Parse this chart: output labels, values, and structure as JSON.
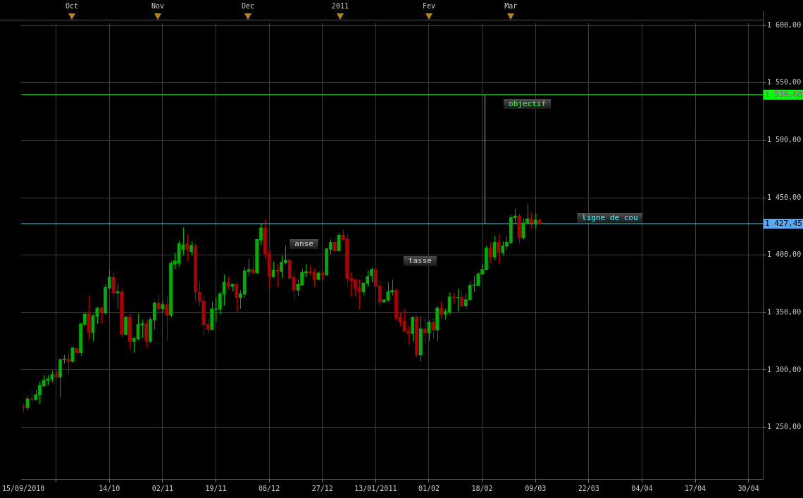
{
  "chart_data": {
    "type": "candlestick",
    "categories": [
      "15/09/2010",
      null,
      null,
      null,
      null,
      null,
      null,
      null,
      null,
      null,
      null,
      null,
      null,
      null,
      null,
      null,
      null,
      null,
      null,
      null,
      null,
      "14/10",
      null,
      null,
      null,
      null,
      null,
      null,
      null,
      null,
      null,
      null,
      null,
      null,
      "02/11",
      null,
      null,
      null,
      null,
      null,
      null,
      null,
      null,
      null,
      null,
      null,
      null,
      "19/11",
      null,
      null,
      null,
      null,
      null,
      null,
      null,
      null,
      null,
      null,
      null,
      null,
      "08/12",
      null,
      null,
      null,
      null,
      null,
      null,
      null,
      null,
      null,
      null,
      null,
      null,
      "27/12",
      null,
      null,
      null,
      null,
      null,
      null,
      null,
      null,
      null,
      null,
      null,
      null,
      "13/01/2011",
      null,
      null,
      null,
      null,
      null,
      null,
      null,
      null,
      null,
      null,
      null,
      null,
      "01/02",
      null,
      null,
      null,
      null,
      null,
      null,
      null,
      null,
      null,
      null,
      null,
      null,
      "18/02",
      null,
      null,
      null,
      null,
      null,
      null,
      null,
      null,
      null,
      null,
      null,
      null,
      "09/03",
      null,
      null,
      null,
      null,
      null,
      null,
      null,
      null,
      null,
      null,
      null,
      null,
      "22/03",
      null,
      null,
      null,
      null,
      null,
      null,
      null,
      null,
      null,
      null,
      null,
      null,
      "04/04",
      null,
      null,
      null,
      null,
      null,
      null,
      null,
      null,
      null,
      null,
      null,
      null,
      "17/04",
      null,
      null,
      null,
      null,
      null,
      null,
      null,
      null,
      null,
      null,
      null,
      null,
      "30/04",
      null,
      null,
      null
    ],
    "ohlc": [
      [
        1268,
        1271.1,
        1263.2,
        1267.5
      ],
      [
        1267.3,
        1277.3,
        1264.8,
        1274.8
      ],
      [
        1275,
        1282.3,
        1271.9,
        1274.5
      ],
      [
        1274,
        1282.9,
        1273.6,
        1278.6
      ],
      [
        1278.1,
        1289.8,
        1270.5,
        1286.6
      ],
      [
        1286,
        1295.4,
        1285.6,
        1291
      ],
      [
        1290.6,
        1295.4,
        1286.9,
        1292.2
      ],
      [
        1291.8,
        1299.1,
        1289.3,
        1296
      ],
      [
        1296,
        1299,
        1293.7,
        1293.7
      ],
      [
        1293.7,
        1309.7,
        1276.3,
        1309.1
      ],
      [
        1308.6,
        1313,
        1305.5,
        1309.5
      ],
      [
        1309.7,
        1315.3,
        1296.2,
        1307.4
      ],
      [
        1307.4,
        1319.9,
        1306.2,
        1319.2
      ],
      [
        1318.8,
        1318.8,
        1312.4,
        1314.9
      ],
      [
        1314.9,
        1340.8,
        1312.4,
        1340.2
      ],
      [
        1339.8,
        1348.9,
        1338.5,
        1348.9
      ],
      [
        1348.9,
        1364.5,
        1326.1,
        1332.7
      ],
      [
        1332.7,
        1348.9,
        1324.8,
        1347.1
      ],
      [
        1346.4,
        1355.2,
        1340.2,
        1353.9
      ],
      [
        1353.9,
        1355.2,
        1340.2,
        1350
      ],
      [
        1349.6,
        1374.5,
        1348.3,
        1372
      ],
      [
        1371.3,
        1386.9,
        1370.3,
        1380.7
      ],
      [
        1380.7,
        1385,
        1362.2,
        1367
      ],
      [
        1367,
        1375.1,
        1352.7,
        1368.2
      ],
      [
        1368.2,
        1370.7,
        1328,
        1330.9
      ],
      [
        1330.9,
        1347.1,
        1330.2,
        1345.8
      ],
      [
        1345.8,
        1348.9,
        1318,
        1324.8
      ],
      [
        1324.8,
        1327.8,
        1314.9,
        1327.8
      ],
      [
        1327.1,
        1348.9,
        1325.9,
        1339.6
      ],
      [
        1339,
        1343.3,
        1327.8,
        1340.2
      ],
      [
        1340.2,
        1343.3,
        1319.2,
        1324.8
      ],
      [
        1324.8,
        1345.8,
        1323,
        1343.9
      ],
      [
        1343.3,
        1359.5,
        1335.2,
        1358.3
      ],
      [
        1358.3,
        1365.7,
        1348.9,
        1353.3
      ],
      [
        1353.3,
        1360.1,
        1350.2,
        1357
      ],
      [
        1357,
        1364.5,
        1325.3,
        1347.7
      ],
      [
        1347.7,
        1395,
        1346,
        1393
      ],
      [
        1392,
        1402,
        1388,
        1395
      ],
      [
        1393,
        1412,
        1390,
        1410
      ],
      [
        1405,
        1424,
        1400,
        1409
      ],
      [
        1410,
        1418,
        1395,
        1405
      ],
      [
        1403,
        1412,
        1400,
        1408.5
      ],
      [
        1408.1,
        1409.8,
        1359.7,
        1367.8
      ],
      [
        1367.8,
        1377,
        1356,
        1359.7
      ],
      [
        1360.1,
        1364.5,
        1329.8,
        1339.2
      ],
      [
        1339.6,
        1344.6,
        1331.1,
        1335.2
      ],
      [
        1335.2,
        1359.5,
        1334.6,
        1353.3
      ],
      [
        1352.7,
        1363.3,
        1341.7,
        1353.3
      ],
      [
        1352.9,
        1367.6,
        1348.5,
        1366.4
      ],
      [
        1366,
        1382.8,
        1356,
        1376.3
      ],
      [
        1376.3,
        1381.3,
        1369.7,
        1372.8
      ],
      [
        1372.8,
        1375.3,
        1368.5,
        1374.5
      ],
      [
        1374.5,
        1375.3,
        1351,
        1362.9
      ],
      [
        1362.9,
        1369.5,
        1353.5,
        1366.4
      ],
      [
        1366,
        1390,
        1362.9,
        1386.3
      ],
      [
        1385.7,
        1396.9,
        1381.9,
        1387.5
      ],
      [
        1387.5,
        1398.8,
        1383.2,
        1384.4
      ],
      [
        1384.4,
        1414,
        1384,
        1413.7
      ],
      [
        1413.1,
        1427.4,
        1408.7,
        1423.7
      ],
      [
        1423.7,
        1431.1,
        1396.3,
        1401.2
      ],
      [
        1401.9,
        1404.4,
        1371.4,
        1381.3
      ],
      [
        1381.3,
        1394.4,
        1380.1,
        1386.9
      ],
      [
        1386.9,
        1391.9,
        1372,
        1385.7
      ],
      [
        1385.7,
        1399.4,
        1380.1,
        1393.8
      ],
      [
        1393.2,
        1408.1,
        1391.9,
        1395.6
      ],
      [
        1395.6,
        1396.9,
        1377.6,
        1380.1
      ],
      [
        1380.7,
        1386.3,
        1360.8,
        1369.5
      ],
      [
        1369.5,
        1378.8,
        1364.5,
        1374.5
      ],
      [
        1373.8,
        1388.2,
        1373.8,
        1385.1
      ],
      [
        1384.6,
        1391.9,
        1380.7,
        1385.5
      ],
      [
        1385.5,
        1390.7,
        1382.6,
        1384.6
      ],
      [
        1385.1,
        1388.2,
        1372,
        1378.8
      ],
      [
        1378.8,
        1385.7,
        1378.2,
        1384.4
      ],
      [
        1384.4,
        1385.7,
        1378.2,
        1382.6
      ],
      [
        1382.6,
        1406.2,
        1382.6,
        1405.6
      ],
      [
        1405,
        1413.7,
        1400.6,
        1411.2
      ],
      [
        1411.2,
        1415,
        1403.1,
        1403.7
      ],
      [
        1403.7,
        1419.3,
        1403.7,
        1417.4
      ],
      [
        1417.4,
        1422.4,
        1412.5,
        1413.7
      ],
      [
        1414.3,
        1417.4,
        1374.5,
        1379.4
      ],
      [
        1380.1,
        1385.1,
        1363.9,
        1377.6
      ],
      [
        1378.2,
        1379.4,
        1363.9,
        1370.7
      ],
      [
        1371.4,
        1378.8,
        1352.7,
        1368.2
      ],
      [
        1368.2,
        1376.3,
        1365.1,
        1375.7
      ],
      [
        1375.3,
        1386.3,
        1372.6,
        1381.3
      ],
      [
        1381.9,
        1388.8,
        1376.3,
        1387.5
      ],
      [
        1387.5,
        1393.1,
        1369.4,
        1372.7
      ],
      [
        1373.2,
        1378.1,
        1354.7,
        1359
      ],
      [
        1359,
        1361.3,
        1359,
        1361.3
      ],
      [
        1360.9,
        1376.3,
        1359,
        1368.2
      ],
      [
        1367.8,
        1378.8,
        1364.7,
        1369.4
      ],
      [
        1369.4,
        1370.7,
        1343.5,
        1345.3
      ],
      [
        1345.8,
        1350.3,
        1337.9,
        1341.6
      ],
      [
        1342,
        1353.2,
        1332.7,
        1333.5
      ],
      [
        1333.9,
        1338.3,
        1322.3,
        1331.6
      ],
      [
        1331.6,
        1346.6,
        1324.8,
        1345.8
      ],
      [
        1345.8,
        1347.6,
        1310.5,
        1313
      ],
      [
        1313,
        1347,
        1307.4,
        1335.8
      ],
      [
        1335.8,
        1346.4,
        1322.9,
        1332.3
      ],
      [
        1332.3,
        1343.3,
        1325.4,
        1341.4
      ],
      [
        1341.4,
        1344.7,
        1326.7,
        1334.8
      ],
      [
        1334.8,
        1355.7,
        1324.8,
        1353.9
      ],
      [
        1353.9,
        1359.5,
        1344.7,
        1348.5
      ],
      [
        1348.5,
        1353.2,
        1344.1,
        1351
      ],
      [
        1350.3,
        1367.6,
        1348.5,
        1363.8
      ],
      [
        1363.8,
        1366.9,
        1357.6,
        1362.8
      ],
      [
        1362.8,
        1370.7,
        1351,
        1363.4
      ],
      [
        1363.4,
        1368.8,
        1354.1,
        1355.9
      ],
      [
        1355.9,
        1366.9,
        1353.4,
        1361.3
      ],
      [
        1360.9,
        1376.3,
        1360.9,
        1373.8
      ],
      [
        1373.6,
        1381.9,
        1367.8,
        1374
      ],
      [
        1373.4,
        1385,
        1373.4,
        1383.8
      ],
      [
        1383.4,
        1391.9,
        1383.4,
        1387.5
      ],
      [
        1387.1,
        1408.1,
        1387.1,
        1406.2
      ],
      [
        1406.2,
        1411.2,
        1392.7,
        1398.3
      ],
      [
        1398.3,
        1416.8,
        1395.8,
        1411.2
      ],
      [
        1411.2,
        1418,
        1392.1,
        1402
      ],
      [
        1402,
        1411.8,
        1399.5,
        1408.1
      ],
      [
        1407.7,
        1416.1,
        1404.5,
        1411.2
      ],
      [
        1410.7,
        1434.8,
        1409.5,
        1432.9
      ],
      [
        1432.3,
        1440.4,
        1427.3,
        1434.2
      ],
      [
        1434.2,
        1436.1,
        1410.1,
        1415.1
      ],
      [
        1415.1,
        1431.7,
        1413.2,
        1428
      ],
      [
        1427.6,
        1444.8,
        1427.6,
        1431.7
      ],
      [
        1431.7,
        1436.7,
        1423.2,
        1428.2
      ],
      [
        1428.2,
        1436.1,
        1423.2,
        1430.5
      ],
      [
        1430.5,
        1431.7,
        1426.9,
        1426.9
      ],
      null,
      null,
      null,
      null,
      null,
      null,
      null,
      null,
      null,
      null,
      null,
      null,
      null,
      null,
      null,
      null,
      null,
      null,
      null,
      null,
      null,
      null,
      null,
      null,
      null,
      null,
      null,
      null,
      null,
      null,
      null,
      null,
      null,
      null,
      null,
      null,
      null,
      null,
      null,
      null,
      null,
      null,
      null,
      null,
      null,
      null,
      null,
      null,
      null,
      null,
      null,
      null,
      null,
      null
    ],
    "colors": [
      "#b00000",
      "#00b000",
      "#b00000",
      "#00b000",
      "#00b000",
      "#00b000",
      "#00b000",
      "#00b000",
      "#b00000",
      "#00b000",
      "#00b000",
      "#b00000",
      "#00b000",
      "#b00000",
      "#00b000",
      "#00b000",
      "#b00000",
      "#00b000",
      "#00b000",
      "#b00000",
      "#00b000",
      "#00b000",
      "#b00000",
      "#00b000",
      "#b00000",
      "#00b000",
      "#b00000",
      "#00b000",
      "#00b000",
      "#00b000",
      "#b00000",
      "#00b000",
      "#00b000",
      "#b00000",
      "#00b000",
      "#b00000",
      "#00b000",
      "#00b000",
      "#00b000",
      "#00b000",
      "#b00000",
      "#00b000",
      "#b00000",
      "#b00000",
      "#b00000",
      "#b00000",
      "#00b000",
      "#00b000",
      "#00b000",
      "#00b000",
      "#b00000",
      "#00b000",
      "#b00000",
      "#00b000",
      "#00b000",
      "#00b000",
      "#b00000",
      "#00b000",
      "#00b000",
      "#b00000",
      "#b00000",
      "#00b000",
      "#b00000",
      "#00b000",
      "#00b000",
      "#b00000",
      "#b00000",
      "#00b000",
      "#00b000",
      "#00b000",
      "#b00000",
      "#b00000",
      "#00b000",
      "#b00000",
      "#00b000",
      "#00b000",
      "#b00000",
      "#00b000",
      "#b00000",
      "#b00000",
      "#b00000",
      "#b00000",
      "#b00000",
      "#00b000",
      "#00b000",
      "#00b000",
      "#b00000",
      "#b00000",
      "#00b000",
      "#00b000",
      "#00b000",
      "#b00000",
      "#b00000",
      "#b00000",
      "#b00000",
      "#00b000",
      "#b00000",
      "#00b000",
      "#b00000",
      "#00b000",
      "#b00000",
      "#00b000",
      "#b00000",
      "#00b000",
      "#00b000",
      "#b00000",
      "#00b000",
      "#b00000",
      "#00b000",
      "#00b000",
      "#00b000",
      "#00b000",
      "#00b000",
      "#00b000",
      "#b00000",
      "#00b000",
      "#b00000",
      "#00b000",
      "#00b000",
      "#00b000",
      "#00b000",
      "#b00000",
      "#00b000",
      "#00b000",
      "#b00000",
      "#00b000",
      "#b00000",
      null,
      null,
      null,
      null,
      null,
      null,
      null,
      null,
      null,
      null,
      null,
      null,
      null,
      null,
      null,
      null,
      null,
      null,
      null,
      null,
      null,
      null,
      null,
      null,
      null,
      null,
      null,
      null,
      null,
      null,
      null,
      null,
      null,
      null,
      null,
      null,
      null,
      null,
      null,
      null,
      null,
      null,
      null,
      null,
      null,
      null,
      null,
      null,
      null,
      null,
      null,
      null,
      null,
      null
    ],
    "ylim": [
      1205,
      1602
    ],
    "yticks": [
      {
        "value": 1250,
        "label": "1 250,00"
      },
      {
        "value": 1300,
        "label": "1 300,00"
      },
      {
        "value": 1350,
        "label": "1 350,00"
      },
      {
        "value": 1400,
        "label": "1 400,00"
      },
      {
        "value": 1450,
        "label": "1 450,00"
      },
      {
        "value": 1500,
        "label": "1 500,00"
      },
      {
        "value": 1550,
        "label": "1 550,00"
      },
      {
        "value": 1600,
        "label": "1 600,00"
      }
    ],
    "grid": true,
    "ref_lines": [
      {
        "axis": "y",
        "value": 1539.68,
        "label": "1 539,68",
        "color": "#00e000"
      },
      {
        "axis": "y",
        "value": 1427.45,
        "label": "1 427,45",
        "color": "#00e0e0"
      }
    ],
    "annotations": [
      "objectif",
      "anse",
      "tasse",
      "ligne de cou",
      "Oct",
      "Nov",
      "Dec",
      "2011",
      "Fev",
      "Mar"
    ]
  }
}
